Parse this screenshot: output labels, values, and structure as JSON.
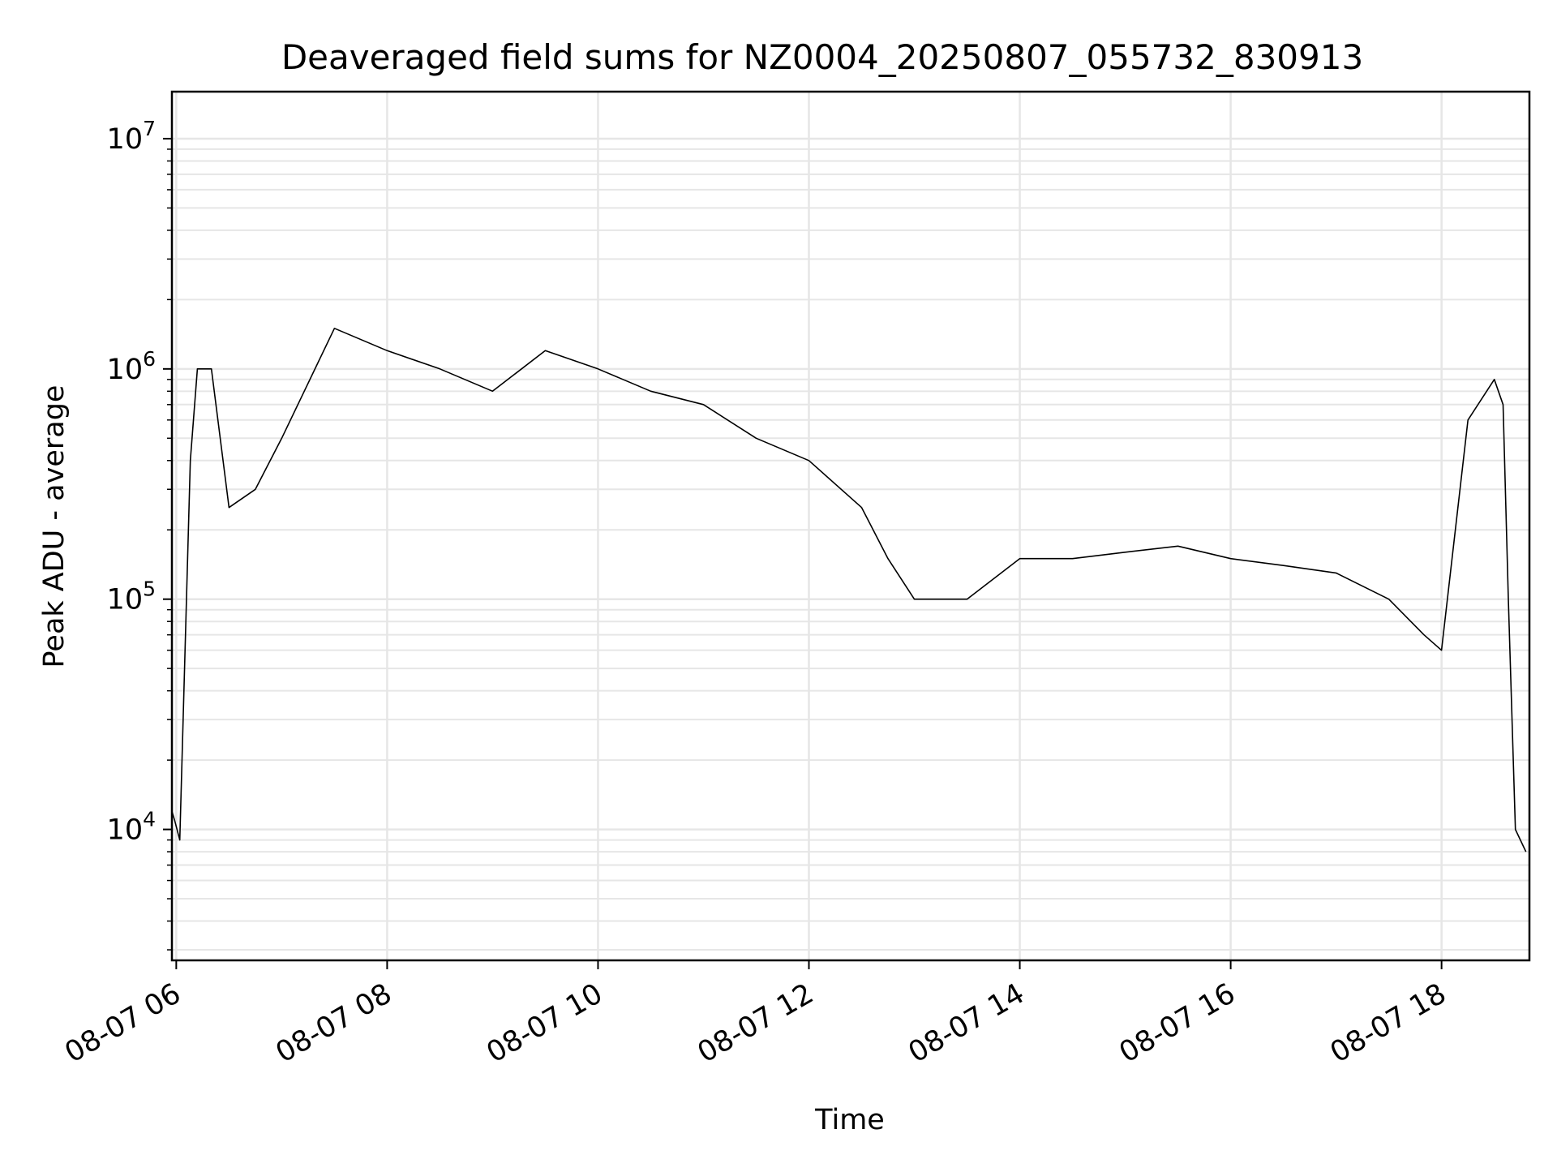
{
  "chart_data": {
    "type": "line",
    "title": "Deaveraged field sums for NZ0004_20250807_055732_830913",
    "xlabel": "Time",
    "ylabel": "Peak ADU - average",
    "yscale": "log",
    "ylim": [
      2700,
      16000000
    ],
    "xlim": [
      "2025-08-07 05:57:32",
      "2025-08-07 18:50:00"
    ],
    "grid": true,
    "line_color": "#000000",
    "grid_color": "#e6e6e6",
    "x_ticks": [
      {
        "value": "2025-08-07 06:00",
        "label": "08-07 06"
      },
      {
        "value": "2025-08-07 08:00",
        "label": "08-07 08"
      },
      {
        "value": "2025-08-07 10:00",
        "label": "08-07 10"
      },
      {
        "value": "2025-08-07 12:00",
        "label": "08-07 12"
      },
      {
        "value": "2025-08-07 14:00",
        "label": "08-07 14"
      },
      {
        "value": "2025-08-07 16:00",
        "label": "08-07 16"
      },
      {
        "value": "2025-08-07 18:00",
        "label": "08-07 18"
      }
    ],
    "y_ticks": [
      {
        "value": 10000,
        "base": "10",
        "exp": "4"
      },
      {
        "value": 100000,
        "base": "10",
        "exp": "5"
      },
      {
        "value": 1000000,
        "base": "10",
        "exp": "6"
      },
      {
        "value": 10000000,
        "base": "10",
        "exp": "7"
      }
    ],
    "series": [
      {
        "x": [
          "2025-08-07 05:57:32",
          "2025-08-07 05:59:00",
          "2025-08-07 06:02:00",
          "2025-08-07 06:05:00",
          "2025-08-07 06:08:00",
          "2025-08-07 06:12:00",
          "2025-08-07 06:20:00",
          "2025-08-07 06:30:00",
          "2025-08-07 06:45:00",
          "2025-08-07 07:00:00",
          "2025-08-07 07:30:00",
          "2025-08-07 08:00:00",
          "2025-08-07 08:30:00",
          "2025-08-07 09:00:00",
          "2025-08-07 09:30:00",
          "2025-08-07 10:00:00",
          "2025-08-07 10:30:00",
          "2025-08-07 11:00:00",
          "2025-08-07 11:30:00",
          "2025-08-07 12:00:00",
          "2025-08-07 12:30:00",
          "2025-08-07 12:45:00",
          "2025-08-07 13:00:00",
          "2025-08-07 13:30:00",
          "2025-08-07 14:00:00",
          "2025-08-07 14:30:00",
          "2025-08-07 15:00:00",
          "2025-08-07 15:30:00",
          "2025-08-07 16:00:00",
          "2025-08-07 16:30:00",
          "2025-08-07 17:00:00",
          "2025-08-07 17:30:00",
          "2025-08-07 17:50:00",
          "2025-08-07 18:00:00",
          "2025-08-07 18:15:00",
          "2025-08-07 18:30:00",
          "2025-08-07 18:35:00",
          "2025-08-07 18:38:00",
          "2025-08-07 18:42:00",
          "2025-08-07 18:48:00"
        ],
        "y": [
          12000,
          11000,
          9000,
          60000,
          400000,
          1000000,
          1000000,
          250000,
          300000,
          500000,
          1500000,
          1200000,
          1000000,
          800000,
          1200000,
          1000000,
          800000,
          700000,
          500000,
          400000,
          250000,
          150000,
          100000,
          100000,
          150000,
          150000,
          160000,
          170000,
          150000,
          140000,
          130000,
          100000,
          70000,
          60000,
          600000,
          900000,
          700000,
          100000,
          10000,
          8000
        ]
      }
    ]
  }
}
